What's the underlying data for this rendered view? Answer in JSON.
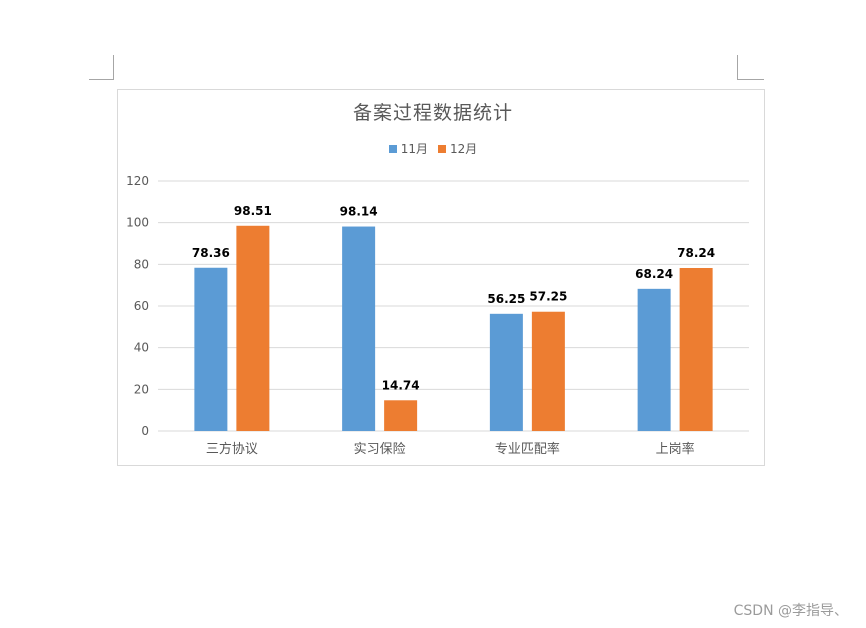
{
  "page": {
    "watermark": "CSDN @李指导、"
  },
  "colors": {
    "series_11": "#5b9bd5",
    "series_12": "#ed7d31",
    "grid": "#d9d9d9",
    "text": "#595959"
  },
  "chart_data": {
    "type": "bar",
    "title": "备案过程数据统计",
    "categories": [
      "三方协议",
      "实习保险",
      "专业匹配率",
      "上岗率"
    ],
    "series": [
      {
        "name": "11月",
        "values": [
          78.36,
          98.14,
          56.25,
          68.24
        ]
      },
      {
        "name": "12月",
        "values": [
          98.51,
          14.74,
          57.25,
          78.24
        ]
      }
    ],
    "yticks": [
      "0",
      "20",
      "40",
      "60",
      "80",
      "100",
      "120"
    ],
    "ylim": [
      0,
      120
    ],
    "grid": true,
    "legend": "top",
    "data_labels": true
  }
}
